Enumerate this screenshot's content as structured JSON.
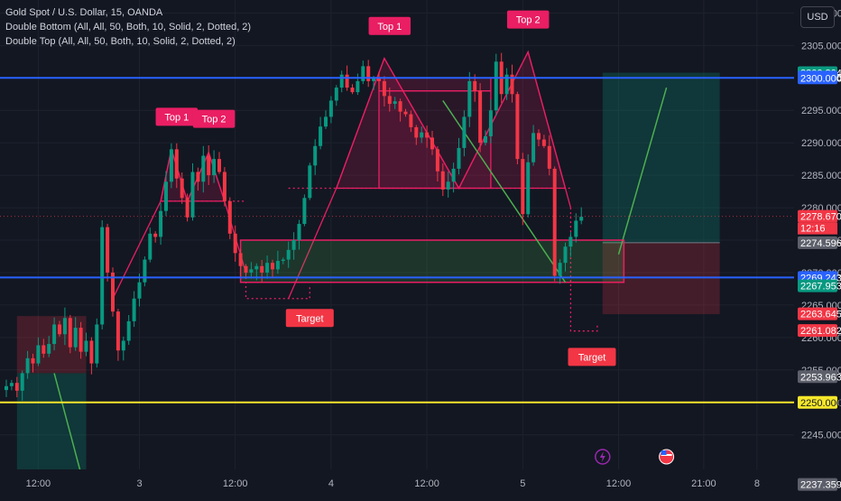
{
  "header": {
    "title": "Gold Spot / U.S. Dollar, 15, OANDA",
    "indicator_1": "Double Bottom (All, All, 50, Both, 10, Solid, 2, Dotted, 2)",
    "indicator_2": "Double Top (All, All, 50, Both, 10, Solid, 2, Dotted, 2)",
    "currency_button": "USD"
  },
  "chart_data": {
    "type": "candlestick",
    "symbol": "Gold Spot / U.S. Dollar",
    "interval": "15",
    "ylim": [
      2235.5,
      2312
    ],
    "y_ticks": [
      2245,
      2250,
      2255,
      2260,
      2265,
      2270,
      2275,
      2280,
      2285,
      2290,
      2295,
      2300,
      2305,
      2310
    ],
    "x_ticks": [
      "12:00",
      "3",
      "12:00",
      "4",
      "12:00",
      "5",
      "12:00",
      "21:00",
      "8"
    ],
    "x_tick_index": [
      6,
      25,
      43,
      61,
      79,
      97,
      115,
      131,
      141
    ],
    "current_price": 2278.67,
    "countdown": "12:16",
    "price_tags": [
      {
        "value": 2300.804,
        "color": "#089981"
      },
      {
        "value": 2300.125,
        "color": "#2962ff"
      },
      {
        "value": 2300.0,
        "color": "#2962ff"
      },
      {
        "value": 2278.67,
        "color": "#f23645"
      },
      {
        "value": 2274.596,
        "color": "#5d606b"
      },
      {
        "value": 2269.243,
        "color": "#2962ff"
      },
      {
        "value": 2267.953,
        "color": "#089981"
      },
      {
        "value": 2263.645,
        "color": "#f23645"
      },
      {
        "value": 2261.082,
        "color": "#f23645"
      },
      {
        "value": 2253.963,
        "color": "#5d606b"
      },
      {
        "value": 2250.0,
        "color": "#f5e62b"
      },
      {
        "value": 2237.359,
        "color": "#5d606b"
      }
    ],
    "horizontal_lines": [
      {
        "value": 2300.0,
        "color": "#2962ff"
      },
      {
        "value": 2269.243,
        "color": "#2962ff"
      },
      {
        "value": 2250.0,
        "color": "#f5e62b"
      }
    ],
    "close_series": [
      2252.5,
      2253.0,
      2251.8,
      2254.5,
      2256.8,
      2256.0,
      2258.8,
      2257.5,
      2259.0,
      2262.0,
      2260.5,
      2263.0,
      2258.5,
      2261.5,
      2257.8,
      2259.5,
      2256.0,
      2262.0,
      2277.0,
      2270.0,
      2264.0,
      2258.0,
      2259.5,
      2262.5,
      2266.0,
      2268.5,
      2272.0,
      2276.0,
      2275.5,
      2279.5,
      2284.0,
      2289.0,
      2284.5,
      2281.5,
      2278.5,
      2285.5,
      2284.0,
      2288.0,
      2285.0,
      2287.5,
      2285.5,
      2281.0,
      2276.0,
      2273.0,
      2271.0,
      2270.0,
      2270.5,
      2271.0,
      2270.0,
      2271.5,
      2270.5,
      2271.8,
      2272.0,
      2273.5,
      2275.0,
      2277.5,
      2281.5,
      2286.5,
      2289.5,
      2292.5,
      2294.0,
      2296.5,
      2298.5,
      2300.5,
      2298.5,
      2297.8,
      2299.5,
      2301.8,
      2299.5,
      2300.0,
      2299.5,
      2297.2,
      2296.0,
      2296.4,
      2294.8,
      2294.4,
      2292.4,
      2290.8,
      2291.6,
      2290.8,
      2289.0,
      2285.6,
      2282.8,
      2284.0,
      2286.0,
      2289.2,
      2294.0,
      2299.5,
      2298.0,
      2290.0,
      2291.0,
      2295.0,
      2302.5,
      2297.5,
      2300.5,
      2297.5,
      2287.5,
      2279.0,
      2287.0,
      2291.5,
      2290.5,
      2289.5,
      2286.0,
      2269.5,
      2271.5,
      2274.0,
      2275.5,
      2278.0,
      2278.6
    ],
    "patterns": [
      {
        "name": "Double Top",
        "labels": [
          "Top 1",
          "Top 2"
        ],
        "target_label": "Target"
      },
      {
        "name": "Double Top",
        "labels": [
          "Top 1",
          "Top 2"
        ],
        "target_label": "Target"
      }
    ],
    "annotations": [
      "Top 1",
      "Top 2",
      "Target",
      "Top 1",
      "Top 2",
      "Target"
    ]
  }
}
